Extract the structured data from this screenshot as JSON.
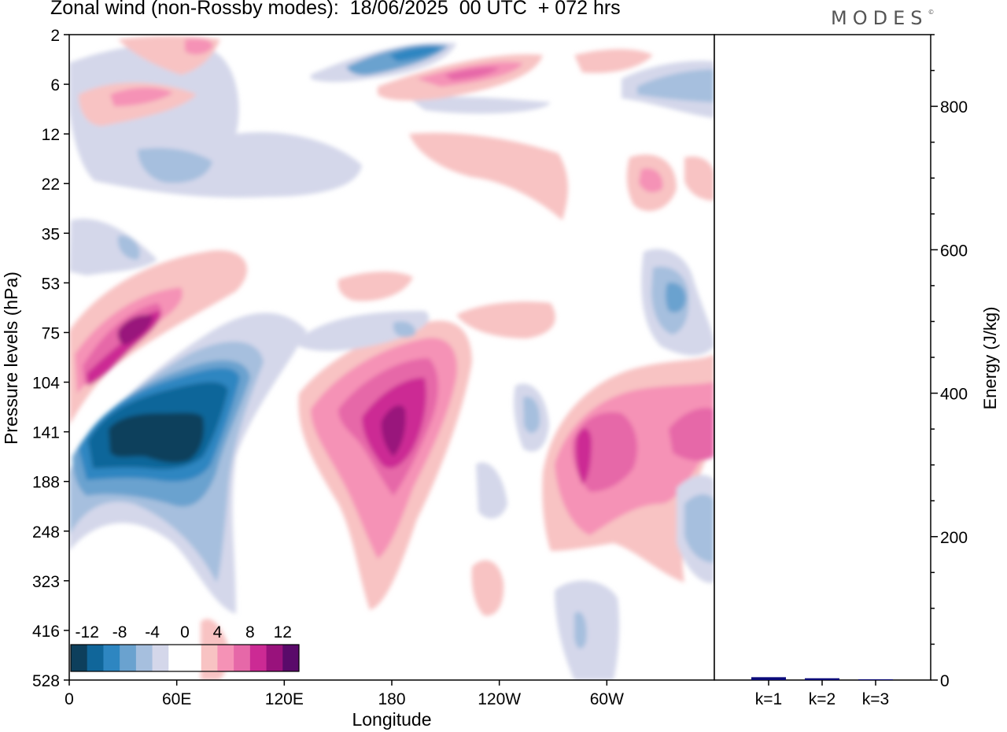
{
  "title": "Zonal wind (non-Rossby modes):  18/06/2025  00 UTC  + 072 hrs",
  "logo": "MODES",
  "logo_mark": "©",
  "chart_data": [
    {
      "type": "heatmap",
      "title": "Zonal wind (non-Rossby modes):  18/06/2025  00 UTC  + 072 hrs",
      "xlabel": "Longitude",
      "ylabel": "Pressure levels (hPa)",
      "x_ticks": [
        "0",
        "60E",
        "120E",
        "180",
        "120W",
        "60W"
      ],
      "y_ticks": [
        "2",
        "6",
        "12",
        "22",
        "35",
        "53",
        "75",
        "104",
        "141",
        "188",
        "248",
        "323",
        "416",
        "528"
      ],
      "colorbar": {
        "labels": [
          "-12",
          "-8",
          "-4",
          "0",
          "4",
          "8",
          "12"
        ],
        "colors": [
          "#0d3f5c",
          "#10669a",
          "#2e86c1",
          "#6aa2cf",
          "#a6bfde",
          "#d4d7ea",
          "#ffffff",
          "#ffffff",
          "#f8c3c3",
          "#f592b6",
          "#e668a8",
          "#cc2a94",
          "#99127c",
          "#5a0a6a"
        ]
      },
      "features": [
        {
          "lon": 30,
          "level": "141",
          "value": -14
        },
        {
          "lon": 75,
          "level": "104",
          "value": -10
        },
        {
          "lon": 40,
          "level": "75",
          "value": 13
        },
        {
          "lon": 15,
          "level": "104",
          "value": 11
        },
        {
          "lon": 180,
          "level": "141",
          "value": 13
        },
        {
          "lon": 270,
          "level": "141",
          "value": 9
        },
        {
          "lon": 300,
          "level": "141",
          "value": 8
        },
        {
          "lon": 193,
          "level": "2",
          "value": -10
        },
        {
          "lon": 220,
          "level": "6",
          "value": 9
        },
        {
          "lon": 27,
          "level": "6",
          "value": 9
        }
      ]
    },
    {
      "type": "bar",
      "categories": [
        "k=1",
        "k=2",
        "k=3"
      ],
      "values": [
        4,
        2.5,
        1
      ],
      "ylabel": "Energy (J/kg)",
      "y_ticks": [
        "0",
        "200",
        "400",
        "600",
        "800"
      ],
      "ylim": [
        0,
        900
      ],
      "bar_color": "#0a0a7a"
    }
  ]
}
